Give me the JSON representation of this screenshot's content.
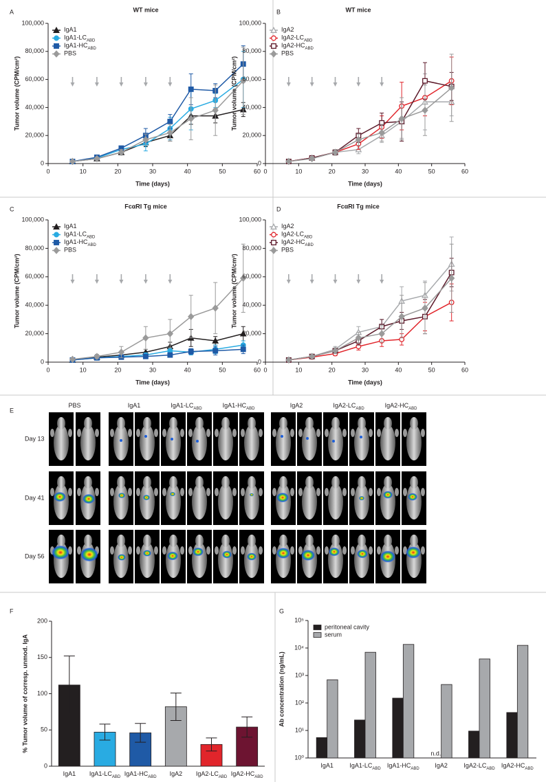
{
  "chart_data": [
    {
      "type": "line",
      "panel_label": "A",
      "title": "WT mice",
      "xlabel": "Time (days)",
      "ylabel": "Tumor volume (CPM/cm²)",
      "x": [
        7,
        14,
        21,
        28,
        35,
        41,
        48,
        56
      ],
      "xlim": [
        0,
        60
      ],
      "xticks": [
        0,
        10,
        20,
        30,
        40,
        50,
        60
      ],
      "ylim": [
        0,
        100000
      ],
      "yticks": [
        0,
        {
          "value": 20000,
          "label": "20,000"
        },
        {
          "value": 40000,
          "label": "40,000"
        },
        {
          "value": 60000,
          "label": "60,000"
        },
        {
          "value": 80000,
          "label": "80,000"
        },
        {
          "value": 100000,
          "label": "100,000"
        }
      ],
      "legend": "upper left",
      "series": [
        {
          "name": "IgA1",
          "name_sub": null,
          "color": "#231f20",
          "marker": "triangle",
          "filled": true,
          "values": [
            1500,
            3500,
            8000,
            15000,
            20000,
            34000,
            34000,
            38500
          ],
          "errors": [
            500,
            800,
            1500,
            3000,
            4000,
            6000,
            5000,
            5000
          ]
        },
        {
          "name": "IgA1-LC",
          "name_sub": "ABD",
          "color": "#29abe2",
          "marker": "circle",
          "filled": true,
          "values": [
            1500,
            4000,
            10000,
            14000,
            25000,
            39000,
            45000,
            60000
          ],
          "errors": [
            500,
            1000,
            2000,
            5000,
            8000,
            15000,
            5000,
            20000
          ]
        },
        {
          "name": "IgA1-HC",
          "name_sub": "ABD",
          "color": "#1f5aa6",
          "marker": "square",
          "filled": true,
          "values": [
            1500,
            4500,
            11000,
            20000,
            30000,
            53000,
            52000,
            71000
          ],
          "errors": [
            500,
            800,
            1500,
            5000,
            5000,
            11000,
            5000,
            13000
          ]
        },
        {
          "name": "PBS",
          "name_sub": null,
          "color": "#9a9a9a",
          "marker": "diamond",
          "filled": true,
          "values": [
            1500,
            3500,
            8000,
            17000,
            22000,
            32000,
            38000,
            59000
          ],
          "errors": [
            500,
            1000,
            2000,
            4000,
            6000,
            15000,
            18000,
            24000
          ]
        }
      ]
    },
    {
      "type": "line",
      "panel_label": "B",
      "title": "WT mice",
      "xlabel": "Time (days)",
      "ylabel": "Tumor volume (CPM/cm²)",
      "x": [
        7,
        14,
        21,
        28,
        35,
        41,
        48,
        56
      ],
      "xlim": [
        0,
        60
      ],
      "xticks": [
        0,
        10,
        20,
        30,
        40,
        50,
        60
      ],
      "ylim": [
        0,
        100000
      ],
      "yticks": [
        0,
        {
          "value": 20000,
          "label": "20,000"
        },
        {
          "value": 40000,
          "label": "40,000"
        },
        {
          "value": 60000,
          "label": "60,000"
        },
        {
          "value": 80000,
          "label": "80,000"
        },
        {
          "value": 100000,
          "label": "100,000"
        }
      ],
      "legend": "upper left",
      "series": [
        {
          "name": "IgA2",
          "name_sub": null,
          "color": "#a7a9ac",
          "marker": "triangle",
          "filled": false,
          "values": [
            1500,
            4000,
            8000,
            10000,
            20000,
            30000,
            44000,
            44000
          ],
          "errors": [
            500,
            1000,
            2000,
            3000,
            5000,
            12000,
            20000,
            10000
          ]
        },
        {
          "name": "IgA2-LC",
          "name_sub": "ABD",
          "color": "#e1252b",
          "marker": "circle",
          "filled": false,
          "values": [
            1500,
            4000,
            8000,
            14000,
            26000,
            41000,
            47000,
            59000
          ],
          "errors": [
            500,
            1000,
            2000,
            4000,
            8000,
            17000,
            13000,
            17000
          ]
        },
        {
          "name": "IgA2-HC",
          "name_sub": "ABD",
          "color": "#5c1a2a",
          "marker": "square",
          "filled": false,
          "values": [
            1500,
            4000,
            8000,
            20000,
            29000,
            30000,
            59000,
            55000
          ],
          "errors": [
            500,
            1000,
            2000,
            5000,
            7000,
            14000,
            13000,
            10000
          ]
        },
        {
          "name": "PBS",
          "name_sub": null,
          "color": "#9a9a9a",
          "marker": "diamond",
          "filled": true,
          "values": [
            1500,
            3500,
            8000,
            17000,
            22000,
            32000,
            38000,
            54000
          ],
          "errors": [
            500,
            1000,
            2000,
            4000,
            6000,
            15000,
            18000,
            24000
          ]
        }
      ]
    },
    {
      "type": "line",
      "panel_label": "C",
      "title": "FcαRI Tg mice",
      "xlabel": "Time (days)",
      "ylabel": "Tumor volume (CPM/cm²)",
      "x": [
        7,
        14,
        21,
        28,
        35,
        41,
        48,
        56
      ],
      "xlim": [
        0,
        60
      ],
      "xticks": [
        0,
        10,
        20,
        30,
        40,
        50,
        60
      ],
      "ylim": [
        0,
        100000
      ],
      "yticks": [
        0,
        {
          "value": 20000,
          "label": "20,000"
        },
        {
          "value": 40000,
          "label": "40,000"
        },
        {
          "value": 60000,
          "label": "60,000"
        },
        {
          "value": 80000,
          "label": "80,000"
        },
        {
          "value": 100000,
          "label": "100,000"
        }
      ],
      "legend": "upper left",
      "series": [
        {
          "name": "IgA1",
          "name_sub": null,
          "color": "#231f20",
          "marker": "triangle",
          "filled": true,
          "values": [
            1500,
            3500,
            5000,
            7000,
            11000,
            17000,
            15000,
            20000
          ],
          "errors": [
            500,
            1000,
            1500,
            2000,
            3000,
            6000,
            3000,
            5000
          ]
        },
        {
          "name": "IgA1-LC",
          "name_sub": "ABD",
          "color": "#29abe2",
          "marker": "circle",
          "filled": true,
          "values": [
            1500,
            3000,
            4000,
            5000,
            8000,
            7000,
            9000,
            12000
          ],
          "errors": [
            500,
            800,
            1000,
            1500,
            2000,
            2000,
            3000,
            3000
          ]
        },
        {
          "name": "IgA1-HC",
          "name_sub": "ABD",
          "color": "#1f5aa6",
          "marker": "square",
          "filled": true,
          "values": [
            1500,
            3000,
            3500,
            4000,
            5000,
            7500,
            8000,
            9000
          ],
          "errors": [
            500,
            800,
            1000,
            1000,
            1500,
            2000,
            3000,
            3000
          ]
        },
        {
          "name": "PBS",
          "name_sub": null,
          "color": "#9a9a9a",
          "marker": "diamond",
          "filled": true,
          "values": [
            2000,
            4000,
            7000,
            17000,
            20000,
            32000,
            38000,
            59000
          ],
          "errors": [
            500,
            1500,
            4000,
            8000,
            10000,
            15000,
            18000,
            24000
          ]
        }
      ]
    },
    {
      "type": "line",
      "panel_label": "D",
      "title": "FcαRI Tg mice",
      "xlabel": "Time (days)",
      "ylabel": "Tumor volume (CPM/cm²)",
      "x": [
        7,
        14,
        21,
        28,
        35,
        41,
        48,
        56
      ],
      "xlim": [
        0,
        60
      ],
      "xticks": [
        0,
        10,
        20,
        30,
        40,
        50,
        60
      ],
      "ylim": [
        0,
        100000
      ],
      "yticks": [
        0,
        {
          "value": 20000,
          "label": "20,000"
        },
        {
          "value": 40000,
          "label": "40,000"
        },
        {
          "value": 60000,
          "label": "60,000"
        },
        {
          "value": 80000,
          "label": "80,000"
        },
        {
          "value": 100000,
          "label": "100,000"
        }
      ],
      "legend": "upper left",
      "series": [
        {
          "name": "IgA2",
          "name_sub": null,
          "color": "#a7a9ac",
          "marker": "triangle",
          "filled": false,
          "values": [
            1500,
            4000,
            9000,
            21000,
            25000,
            43000,
            47000,
            69000
          ],
          "errors": [
            500,
            1000,
            2000,
            4000,
            5000,
            10000,
            10000,
            19000
          ]
        },
        {
          "name": "IgA2-LC",
          "name_sub": "ABD",
          "color": "#e1252b",
          "marker": "circle",
          "filled": false,
          "values": [
            1500,
            3500,
            6000,
            11000,
            15000,
            16000,
            32000,
            42000
          ],
          "errors": [
            500,
            800,
            1500,
            2500,
            4000,
            4000,
            10000,
            13000
          ]
        },
        {
          "name": "IgA2-HC",
          "name_sub": "ABD",
          "color": "#5c1a2a",
          "marker": "square",
          "filled": false,
          "values": [
            1500,
            4000,
            8000,
            15000,
            25000,
            29000,
            32000,
            63000
          ],
          "errors": [
            500,
            800,
            1500,
            3000,
            5000,
            6000,
            12000,
            10000
          ]
        },
        {
          "name": "PBS",
          "name_sub": null,
          "color": "#9a9a9a",
          "marker": "diamond",
          "filled": true,
          "values": [
            1500,
            4000,
            8000,
            17000,
            20000,
            32000,
            38000,
            59000
          ],
          "errors": [
            500,
            1000,
            2000,
            4000,
            6000,
            15000,
            18000,
            24000
          ]
        }
      ]
    },
    {
      "type": "bar",
      "panel_label": "F",
      "ylabel": "% Tumor volume of corresp. unmod. IgA",
      "categories": [
        "IgA1",
        "IgA1-LC",
        "IgA1-HC",
        "IgA2",
        "IgA2-LC",
        "IgA2-HC"
      ],
      "category_subs": [
        null,
        "ABD",
        "ABD",
        null,
        "ABD",
        "ABD"
      ],
      "values": [
        112,
        47,
        46,
        82,
        30,
        54
      ],
      "errors": [
        40,
        11,
        13,
        19,
        9,
        14
      ],
      "colors": [
        "#231f20",
        "#29abe2",
        "#1f5aa6",
        "#a7a9ac",
        "#e1252b",
        "#6d1431"
      ],
      "ylim": [
        0,
        200
      ],
      "yticks": [
        0,
        50,
        100,
        150,
        200
      ]
    },
    {
      "type": "grouped_bar",
      "panel_label": "G",
      "ylabel": "Ab concentration (ng/mL)",
      "log_scale": true,
      "legend": "upper left",
      "null_label": "n.d.",
      "categories": [
        "IgA1",
        "IgA1-LC",
        "IgA1-HC",
        "IgA2",
        "IgA2-LC",
        "IgA2-HC"
      ],
      "category_subs": [
        null,
        "ABD",
        "ABD",
        null,
        "ABD",
        "ABD"
      ],
      "series": [
        {
          "name": "peritoneal cavity",
          "color": "#231f20",
          "values": [
            5.5,
            24,
            150,
            null,
            9.5,
            45
          ]
        },
        {
          "name": "serum",
          "color": "#a7a9ac",
          "values": [
            700,
            7000,
            13500,
            470,
            4000,
            12500
          ]
        }
      ],
      "ylim": [
        1,
        100000
      ],
      "yticks": [
        {
          "value": 1,
          "label": "10⁰"
        },
        {
          "value": 10,
          "label": "10¹"
        },
        {
          "value": 100,
          "label": "10²"
        },
        {
          "value": 1000,
          "label": "10³"
        },
        {
          "value": 10000,
          "label": "10⁴"
        },
        {
          "value": 100000,
          "label": "10⁵"
        }
      ]
    }
  ],
  "image_panel": {
    "panel_label": "E",
    "groups": [
      "PBS",
      "IgA1",
      "IgA1-LC",
      "IgA1-HC",
      "IgA2",
      "IgA2-LC",
      "IgA2-HC"
    ],
    "group_subs": [
      null,
      null,
      "ABD",
      "ABD",
      null,
      "ABD",
      "ABD"
    ],
    "rows": [
      "Day 13",
      "Day 41",
      "Day 56"
    ]
  }
}
